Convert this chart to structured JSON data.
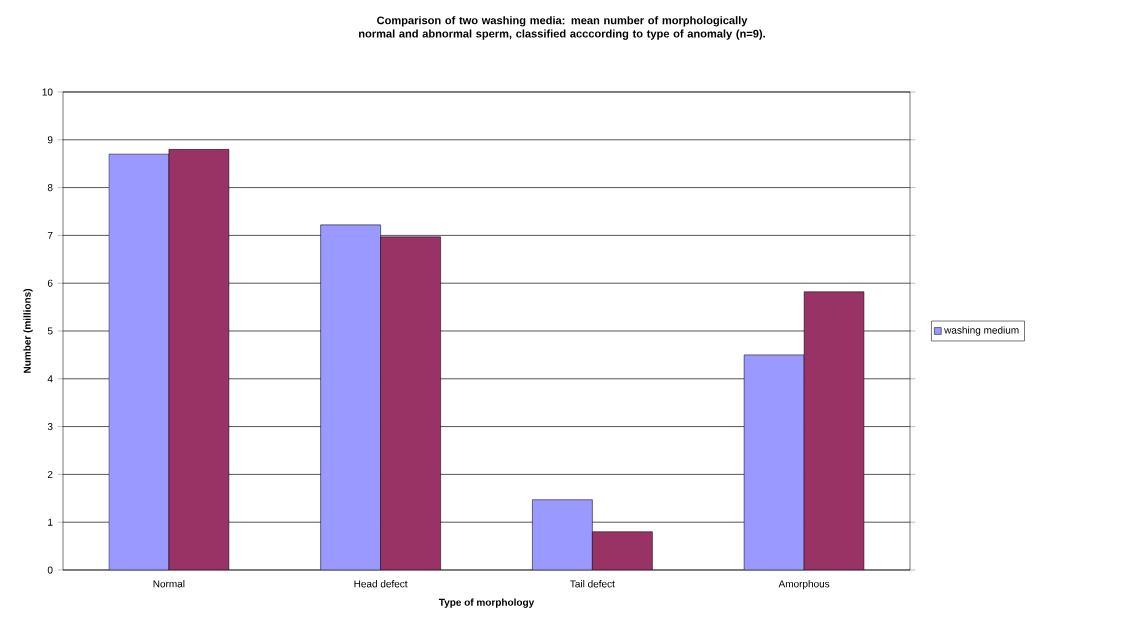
{
  "chart_data": {
    "type": "bar",
    "title": "Comparison of two washing media: mean number of morphologically normal and abnormal sperm, classified acccording to type of anomaly (n=9).",
    "xlabel": "Type of morphology",
    "ylabel": "Number (millions)",
    "categories": [
      "Normal",
      "Head defect",
      "Tail defect",
      "Amorphous"
    ],
    "series": [
      {
        "name": "washing medium",
        "color": "#9999ff",
        "values": [
          8.7,
          7.22,
          1.47,
          4.5
        ]
      },
      {
        "color": "#993366",
        "values": [
          8.8,
          6.97,
          0.8,
          5.82
        ]
      }
    ],
    "ylim": [
      0,
      10
    ],
    "yticks": [
      0,
      1,
      2,
      3,
      4,
      5,
      6,
      7,
      8,
      9,
      10
    ],
    "grid": "y",
    "legend": "right"
  }
}
